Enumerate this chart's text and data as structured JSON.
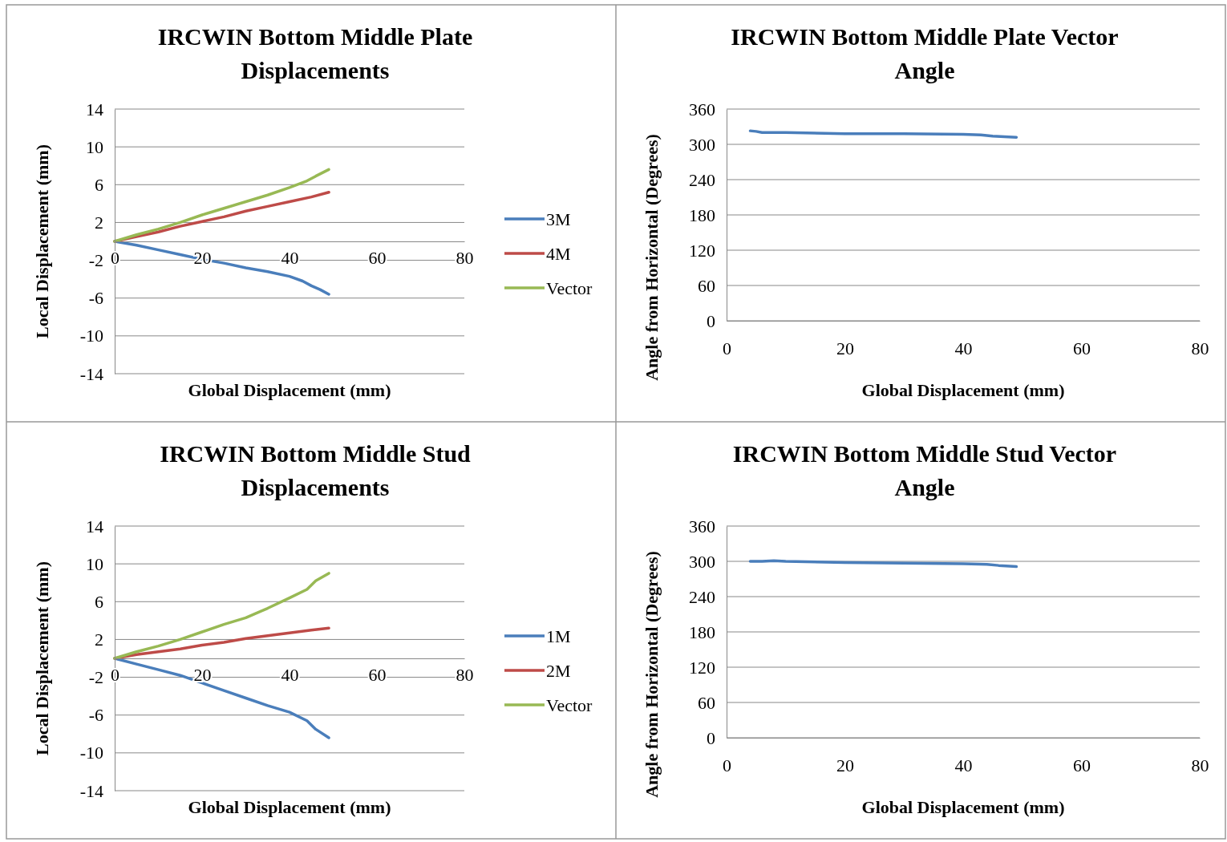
{
  "chart_data": [
    {
      "type": "line",
      "title": "IRCWIN Bottom Middle Plate Displacements",
      "xlabel": "Global Displacement (mm)",
      "ylabel": "Local Displacement (mm)",
      "xlim": [
        0,
        80
      ],
      "xticks": [
        0,
        20,
        40,
        60,
        80
      ],
      "ylim": [
        -14,
        14
      ],
      "yticks": [
        -14,
        -10,
        -6,
        -2,
        2,
        6,
        10,
        14
      ],
      "grid": "y",
      "legend": "right",
      "marker": "none",
      "line_style": "solid",
      "series": [
        {
          "name": "3M",
          "color": "#4a7ebb",
          "x": [
            0,
            5,
            10,
            15,
            20,
            25,
            30,
            35,
            40,
            43,
            45,
            47,
            49
          ],
          "values": [
            0,
            -0.4,
            -0.9,
            -1.4,
            -1.9,
            -2.3,
            -2.8,
            -3.2,
            -3.7,
            -4.2,
            -4.7,
            -5.1,
            -5.6
          ]
        },
        {
          "name": "4M",
          "color": "#be4b48",
          "x": [
            0,
            5,
            10,
            15,
            20,
            25,
            30,
            35,
            40,
            45,
            49
          ],
          "values": [
            0,
            0.5,
            1.0,
            1.6,
            2.1,
            2.6,
            3.2,
            3.7,
            4.2,
            4.7,
            5.2
          ]
        },
        {
          "name": "Vector",
          "color": "#98b954",
          "x": [
            0,
            5,
            10,
            15,
            20,
            25,
            30,
            35,
            40,
            44,
            46,
            49
          ],
          "values": [
            0,
            0.7,
            1.3,
            2.0,
            2.8,
            3.5,
            4.2,
            4.9,
            5.7,
            6.4,
            6.9,
            7.6
          ]
        }
      ]
    },
    {
      "type": "line",
      "title": "IRCWIN Bottom Middle Plate Vector Angle",
      "xlabel": "Global Displacement (mm)",
      "ylabel": "Angle from Horizontal (Degrees)",
      "xlim": [
        0,
        80
      ],
      "xticks": [
        0,
        20,
        40,
        60,
        80
      ],
      "ylim": [
        0,
        360
      ],
      "yticks": [
        0,
        60,
        120,
        180,
        240,
        300,
        360
      ],
      "grid": "y",
      "legend": false,
      "marker": "none",
      "line_style": "solid",
      "series": [
        {
          "color": "#4a7ebb",
          "x": [
            4,
            5,
            6,
            10,
            20,
            30,
            40,
            43,
            45,
            47,
            49
          ],
          "values": [
            323,
            322,
            320,
            320,
            318,
            318,
            317,
            316,
            314,
            313,
            312
          ]
        }
      ]
    },
    {
      "type": "line",
      "title": "IRCWIN Bottom Middle Stud Displacements",
      "xlabel": "Global Displacement (mm)",
      "ylabel": "Local Displacement (mm)",
      "xlim": [
        0,
        80
      ],
      "xticks": [
        0,
        20,
        40,
        60,
        80
      ],
      "ylim": [
        -14,
        14
      ],
      "yticks": [
        -14,
        -10,
        -6,
        -2,
        2,
        6,
        10,
        14
      ],
      "grid": "y",
      "legend": "right",
      "marker": "none",
      "line_style": "solid",
      "series": [
        {
          "name": "1M",
          "color": "#4a7ebb",
          "x": [
            0,
            5,
            10,
            15,
            20,
            25,
            30,
            35,
            40,
            44,
            46,
            49
          ],
          "values": [
            0,
            -0.6,
            -1.2,
            -1.8,
            -2.6,
            -3.4,
            -4.2,
            -5.0,
            -5.7,
            -6.6,
            -7.5,
            -8.4
          ]
        },
        {
          "name": "2M",
          "color": "#be4b48",
          "x": [
            0,
            5,
            10,
            15,
            20,
            25,
            30,
            35,
            40,
            45,
            49
          ],
          "values": [
            0,
            0.4,
            0.7,
            1.0,
            1.4,
            1.7,
            2.1,
            2.4,
            2.7,
            3.0,
            3.2
          ]
        },
        {
          "name": "Vector",
          "color": "#98b954",
          "x": [
            0,
            5,
            10,
            15,
            20,
            25,
            30,
            35,
            40,
            44,
            46,
            49
          ],
          "values": [
            0,
            0.7,
            1.3,
            2.0,
            2.8,
            3.6,
            4.3,
            5.3,
            6.4,
            7.3,
            8.2,
            9.0
          ]
        }
      ]
    },
    {
      "type": "line",
      "title": "IRCWIN Bottom Middle Stud Vector Angle",
      "xlabel": "Global Displacement (mm)",
      "ylabel": "Angle from Horizontal (Degrees)",
      "xlim": [
        0,
        80
      ],
      "xticks": [
        0,
        20,
        40,
        60,
        80
      ],
      "ylim": [
        0,
        360
      ],
      "yticks": [
        0,
        60,
        120,
        180,
        240,
        300,
        360
      ],
      "grid": "y",
      "legend": false,
      "marker": "none",
      "line_style": "solid",
      "series": [
        {
          "color": "#4a7ebb",
          "x": [
            4,
            6,
            8,
            10,
            20,
            30,
            40,
            44,
            46,
            49
          ],
          "values": [
            300,
            300,
            301,
            300,
            298,
            297,
            296,
            295,
            293,
            291
          ]
        }
      ]
    }
  ]
}
